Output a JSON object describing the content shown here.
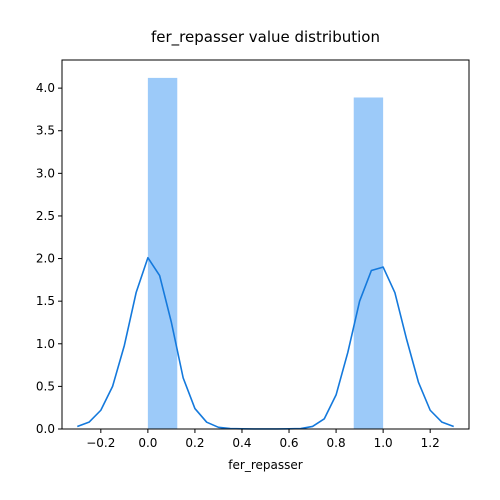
{
  "chart_data": {
    "type": "bar",
    "title": "fer_repasser value distribution",
    "xlabel": "fer_repasser",
    "ylabel": "",
    "xlim": [
      -0.365,
      1.365
    ],
    "ylim": [
      0,
      4.33
    ],
    "x_ticks": [
      -0.2,
      0.0,
      0.2,
      0.4,
      0.6,
      0.8,
      1.0,
      1.2
    ],
    "x_tick_labels": [
      "−0.2",
      "0.0",
      "0.2",
      "0.4",
      "0.6",
      "0.8",
      "1.0",
      "1.2"
    ],
    "y_ticks": [
      0.0,
      0.5,
      1.0,
      1.5,
      2.0,
      2.5,
      3.0,
      3.5,
      4.0
    ],
    "y_tick_labels": [
      "0.0",
      "0.5",
      "1.0",
      "1.5",
      "2.0",
      "2.5",
      "3.0",
      "3.5",
      "4.0"
    ],
    "grid": false,
    "legend": "none",
    "series": [
      {
        "type": "histogram",
        "bars": [
          {
            "x0": 0.0,
            "x1": 0.125,
            "value": 4.12
          },
          {
            "x0": 0.875,
            "x1": 1.0,
            "value": 3.89
          }
        ],
        "color": "#9ccaf9"
      },
      {
        "type": "kde",
        "color": "#1479dc",
        "x": [
          -0.3,
          -0.25,
          -0.2,
          -0.15,
          -0.1,
          -0.05,
          0.0,
          0.05,
          0.1,
          0.15,
          0.2,
          0.25,
          0.3,
          0.35,
          0.4,
          0.45,
          0.5,
          0.55,
          0.6,
          0.65,
          0.7,
          0.75,
          0.8,
          0.85,
          0.9,
          0.95,
          1.0,
          1.05,
          1.1,
          1.15,
          1.2,
          1.25,
          1.3
        ],
        "y": [
          0.03,
          0.08,
          0.22,
          0.5,
          0.98,
          1.6,
          2.01,
          1.8,
          1.25,
          0.6,
          0.24,
          0.08,
          0.02,
          0.005,
          0.002,
          0.001,
          0.001,
          0.001,
          0.002,
          0.005,
          0.03,
          0.12,
          0.4,
          0.9,
          1.5,
          1.86,
          1.9,
          1.6,
          1.05,
          0.55,
          0.22,
          0.08,
          0.03
        ]
      }
    ]
  }
}
